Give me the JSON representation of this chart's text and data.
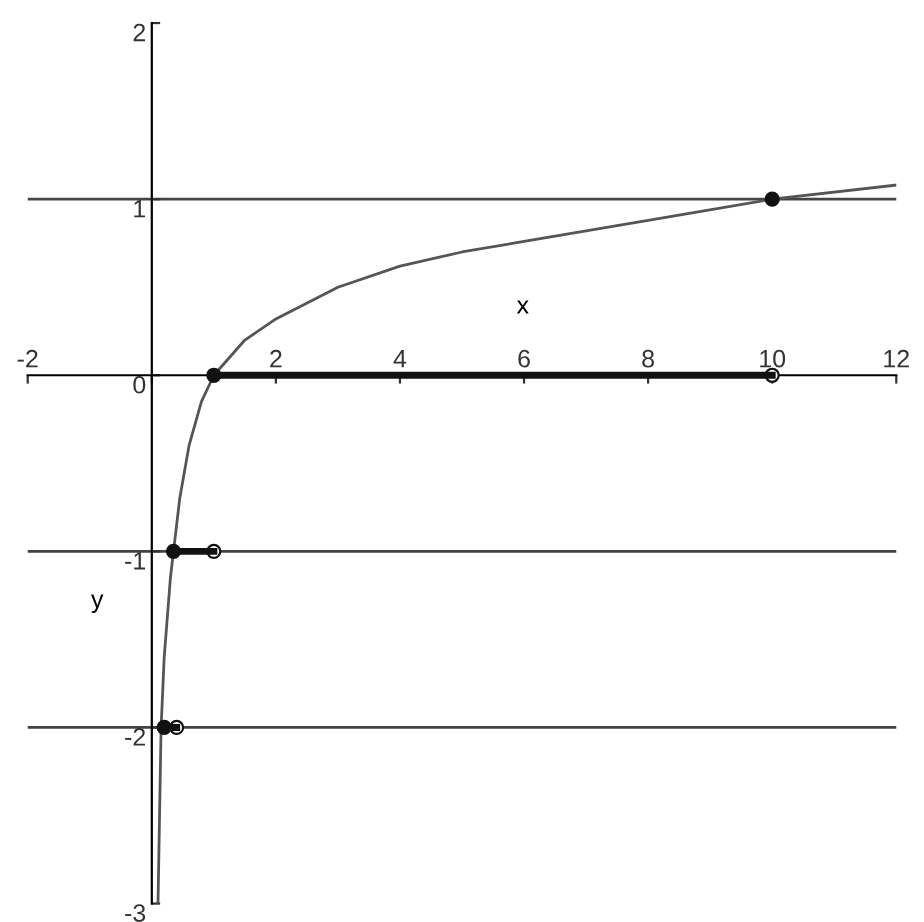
{
  "chart_data": {
    "type": "line",
    "xlabel": "x",
    "ylabel": "y",
    "xlim": [
      -2,
      12
    ],
    "ylim": [
      -3,
      2
    ],
    "xticks": [
      -2,
      {
        "value": 0,
        "label": null
      },
      2,
      4,
      6,
      8,
      10,
      12
    ],
    "yticks": [
      -3,
      -2,
      -1,
      0,
      1,
      2
    ],
    "grid": false,
    "legend": false,
    "ref_lines": [
      {
        "axis": "y",
        "value": 1,
        "color": "#444444"
      },
      {
        "axis": "y",
        "value": -1,
        "color": "#444444"
      },
      {
        "axis": "y",
        "value": -2,
        "color": "#444444"
      }
    ],
    "series": [
      {
        "color": "#555555",
        "x": [
          0.1,
          0.15,
          0.2,
          0.3,
          0.35,
          0.45,
          0.6,
          0.8,
          1,
          1.5,
          2,
          3,
          4,
          5,
          6,
          8,
          10,
          12
        ],
        "values": [
          -3,
          -2,
          -1.6,
          -1.15,
          -1,
          -0.7,
          -0.4,
          -0.15,
          0,
          0.2,
          0.32,
          0.5,
          0.62,
          0.7,
          0.76,
          0.88,
          1,
          1.08
        ]
      },
      {
        "color": "#111111",
        "x": [
          1,
          10
        ],
        "values": [
          0,
          0
        ]
      },
      {
        "color": "#111111",
        "x": [
          0.35,
          1
        ],
        "values": [
          -1,
          -1
        ]
      },
      {
        "color": "#111111",
        "x": [
          0.2,
          0.4
        ],
        "values": [
          -2,
          -2
        ]
      },
      {
        "type": "scatter",
        "marker": "circle",
        "color": "#111111",
        "x": [
          1,
          0.35,
          0.2,
          10
        ],
        "values": [
          0,
          -1,
          -2,
          1
        ]
      },
      {
        "type": "scatter",
        "marker": "circle",
        "color": "#ffffff",
        "x": [
          10,
          1,
          0.4
        ],
        "values": [
          0,
          -1,
          -2
        ]
      }
    ]
  }
}
